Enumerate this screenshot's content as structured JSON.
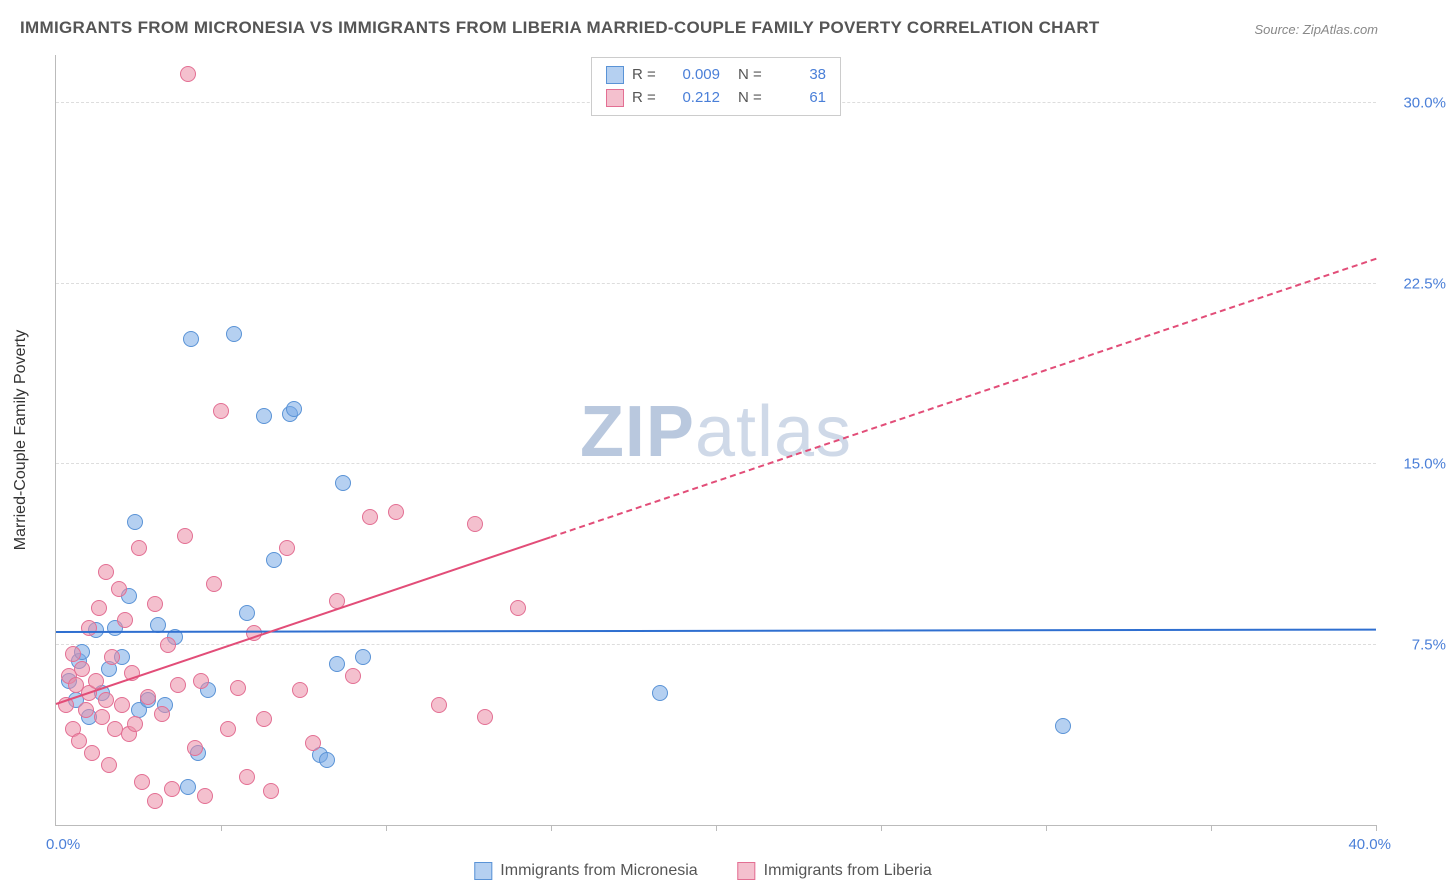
{
  "title": "IMMIGRANTS FROM MICRONESIA VS IMMIGRANTS FROM LIBERIA MARRIED-COUPLE FAMILY POVERTY CORRELATION CHART",
  "source": "Source: ZipAtlas.com",
  "watermark_zip": "ZIP",
  "watermark_atlas": "atlas",
  "yaxis_title": "Married-Couple Family Poverty",
  "chart": {
    "type": "scatter",
    "xlim": [
      0,
      40
    ],
    "ylim": [
      0,
      32
    ],
    "ytick_positions": [
      7.5,
      15.0,
      22.5,
      30.0
    ],
    "ytick_labels": [
      "7.5%",
      "15.0%",
      "22.5%",
      "30.0%"
    ],
    "xtick_positions": [
      5,
      10,
      15,
      20,
      25,
      30,
      35,
      40
    ],
    "xlabel_start": "0.0%",
    "xlabel_end": "40.0%",
    "background_color": "#ffffff",
    "grid_color": "#dddddd",
    "axis_color": "#bbbbbb",
    "series": [
      {
        "name": "Immigrants from Micronesia",
        "fill": "rgba(120,170,230,0.55)",
        "stroke": "#5a93d6",
        "R": "0.009",
        "N": "38",
        "trend": {
          "x1": 0,
          "y1": 8.0,
          "x2": 40,
          "y2": 8.1,
          "color": "#2f6fd0",
          "width": 2.5,
          "dash": false,
          "extrapolate_from": 40
        },
        "points": [
          [
            0.4,
            6.0
          ],
          [
            0.6,
            5.2
          ],
          [
            0.7,
            6.8
          ],
          [
            0.8,
            7.2
          ],
          [
            1.0,
            4.5
          ],
          [
            1.2,
            8.1
          ],
          [
            1.4,
            5.5
          ],
          [
            1.6,
            6.5
          ],
          [
            1.8,
            8.2
          ],
          [
            2.0,
            7.0
          ],
          [
            2.2,
            9.5
          ],
          [
            2.4,
            12.6
          ],
          [
            2.5,
            4.8
          ],
          [
            2.8,
            5.2
          ],
          [
            3.1,
            8.3
          ],
          [
            3.3,
            5.0
          ],
          [
            3.6,
            7.8
          ],
          [
            4.0,
            1.6
          ],
          [
            4.1,
            20.2
          ],
          [
            4.3,
            3.0
          ],
          [
            4.6,
            5.6
          ],
          [
            5.4,
            20.4
          ],
          [
            5.8,
            8.8
          ],
          [
            6.3,
            17.0
          ],
          [
            6.6,
            11.0
          ],
          [
            7.1,
            17.1
          ],
          [
            7.2,
            17.3
          ],
          [
            8.0,
            2.9
          ],
          [
            8.2,
            2.7
          ],
          [
            8.5,
            6.7
          ],
          [
            8.7,
            14.2
          ],
          [
            9.3,
            7.0
          ],
          [
            18.3,
            5.5
          ],
          [
            30.5,
            4.1
          ]
        ]
      },
      {
        "name": "Immigrants from Liberia",
        "fill": "rgba(235,140,165,0.55)",
        "stroke": "#e36f93",
        "R": "0.212",
        "N": "61",
        "trend": {
          "x1": 0,
          "y1": 5.0,
          "x2": 40,
          "y2": 23.5,
          "color": "#e24d78",
          "width": 2.5,
          "dash": false,
          "extrapolate_from": 15
        },
        "points": [
          [
            0.3,
            5.0
          ],
          [
            0.4,
            6.2
          ],
          [
            0.5,
            4.0
          ],
          [
            0.5,
            7.1
          ],
          [
            0.6,
            5.8
          ],
          [
            0.7,
            3.5
          ],
          [
            0.8,
            6.5
          ],
          [
            0.9,
            4.8
          ],
          [
            1.0,
            5.5
          ],
          [
            1.0,
            8.2
          ],
          [
            1.1,
            3.0
          ],
          [
            1.2,
            6.0
          ],
          [
            1.3,
            9.0
          ],
          [
            1.4,
            4.5
          ],
          [
            1.5,
            5.2
          ],
          [
            1.5,
            10.5
          ],
          [
            1.6,
            2.5
          ],
          [
            1.7,
            7.0
          ],
          [
            1.8,
            4.0
          ],
          [
            1.9,
            9.8
          ],
          [
            2.0,
            5.0
          ],
          [
            2.1,
            8.5
          ],
          [
            2.2,
            3.8
          ],
          [
            2.3,
            6.3
          ],
          [
            2.4,
            4.2
          ],
          [
            2.5,
            11.5
          ],
          [
            2.6,
            1.8
          ],
          [
            2.8,
            5.3
          ],
          [
            3.0,
            9.2
          ],
          [
            3.0,
            1.0
          ],
          [
            3.2,
            4.6
          ],
          [
            3.4,
            7.5
          ],
          [
            3.5,
            1.5
          ],
          [
            3.7,
            5.8
          ],
          [
            3.9,
            12.0
          ],
          [
            4.0,
            31.2
          ],
          [
            4.2,
            3.2
          ],
          [
            4.4,
            6.0
          ],
          [
            4.5,
            1.2
          ],
          [
            4.8,
            10.0
          ],
          [
            5.0,
            17.2
          ],
          [
            5.2,
            4.0
          ],
          [
            5.5,
            5.7
          ],
          [
            5.8,
            2.0
          ],
          [
            6.0,
            8.0
          ],
          [
            6.3,
            4.4
          ],
          [
            6.5,
            1.4
          ],
          [
            7.0,
            11.5
          ],
          [
            7.4,
            5.6
          ],
          [
            7.8,
            3.4
          ],
          [
            8.5,
            9.3
          ],
          [
            9.0,
            6.2
          ],
          [
            9.5,
            12.8
          ],
          [
            10.3,
            13.0
          ],
          [
            11.6,
            5.0
          ],
          [
            12.7,
            12.5
          ],
          [
            13.0,
            4.5
          ],
          [
            14.0,
            9.0
          ]
        ]
      }
    ]
  },
  "legend_bottom": [
    {
      "label": "Immigrants from Micronesia",
      "fill": "rgba(120,170,230,0.55)",
      "stroke": "#5a93d6"
    },
    {
      "label": "Immigrants from Liberia",
      "fill": "rgba(235,140,165,0.55)",
      "stroke": "#e36f93"
    }
  ]
}
